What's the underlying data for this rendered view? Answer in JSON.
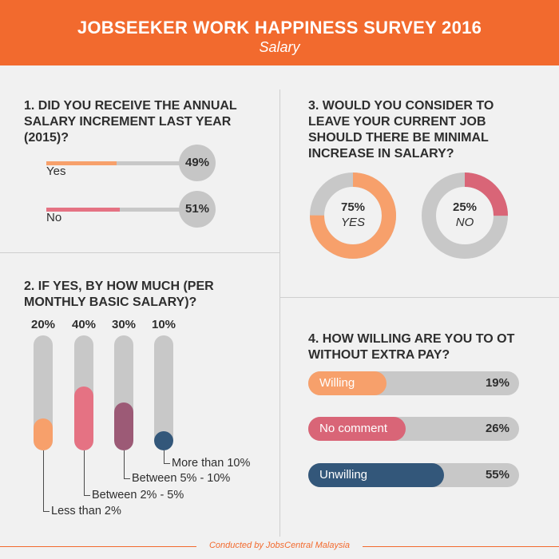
{
  "header": {
    "title": "JOBSEEKER WORK HAPPINESS SURVEY 2016",
    "subtitle": "Salary"
  },
  "footer": "Conducted by JobsCentral Malaysia",
  "colors": {
    "orange": "#f26a2e",
    "light_orange": "#f7a06b",
    "pink": "#e57283",
    "rose": "#d96577",
    "mauve": "#9c5a76",
    "navy": "#33577a",
    "track": "#c8c8c8"
  },
  "chart_data": [
    {
      "type": "bar",
      "title": "1. DID YOU RECEIVE THE ANNUAL SALARY INCREMENT LAST YEAR (2015)?",
      "categories": [
        "Yes",
        "No"
      ],
      "values": [
        49,
        51
      ],
      "value_labels": [
        "49%",
        "51%"
      ],
      "unit": "%"
    },
    {
      "type": "bar",
      "title": "2. IF YES, BY HOW MUCH (PER MONTHLY BASIC SALARY)?",
      "categories": [
        "Less than 2%",
        "Between 2% - 5%",
        "Between 5% - 10%",
        "More than 10%"
      ],
      "values": [
        20,
        40,
        30,
        10
      ],
      "value_labels": [
        "20%",
        "40%",
        "30%",
        "10%"
      ],
      "unit": "%"
    },
    {
      "type": "pie",
      "title": "3. WOULD YOU CONSIDER TO LEAVE YOUR CURRENT JOB SHOULD THERE BE MINIMAL INCREASE IN SALARY?",
      "categories": [
        "YES",
        "NO"
      ],
      "values": [
        75,
        25
      ],
      "value_labels": [
        "75%",
        "25%"
      ],
      "unit": "%"
    },
    {
      "type": "bar",
      "title": "4. HOW WILLING ARE YOU TO OT WITHOUT EXTRA PAY?",
      "categories": [
        "Willing",
        "No comment",
        "Unwilling"
      ],
      "values": [
        19,
        26,
        55
      ],
      "value_labels": [
        "19%",
        "26%",
        "55%"
      ],
      "unit": "%"
    }
  ]
}
